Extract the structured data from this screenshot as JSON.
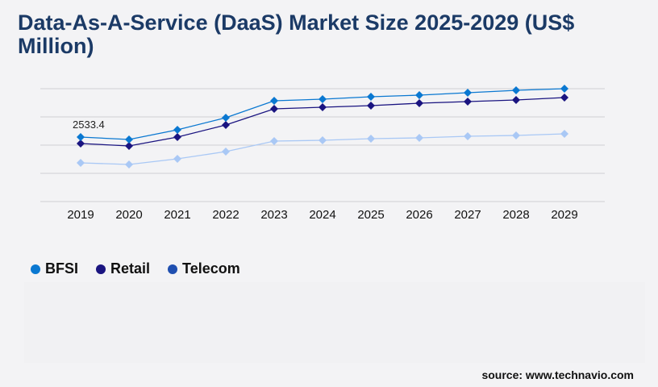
{
  "chart_data": {
    "type": "line",
    "title": "Data-As-A-Service (DaaS) Market Size 2025-2029 (US$ Million)",
    "x": [
      "2019",
      "2020",
      "2021",
      "2022",
      "2023",
      "2024",
      "2025",
      "2026",
      "2027",
      "2028",
      "2029"
    ],
    "series": [
      {
        "name": "BFSI",
        "color": "#0a78d1",
        "values": [
          2533.4,
          2439,
          2819,
          3294,
          3959,
          4022,
          4117,
          4180,
          4275,
          4370,
          4434
        ]
      },
      {
        "name": "Retail",
        "color": "#1a1480",
        "values": [
          2280,
          2185,
          2533,
          3009,
          3642,
          3705,
          3769,
          3864,
          3927,
          3990,
          4085
        ]
      },
      {
        "name": "Telecom",
        "color": "#a9c8f5",
        "legend_color": "#1f4fb0",
        "values": [
          1520,
          1457,
          1678,
          1963,
          2375,
          2407,
          2470,
          2502,
          2565,
          2597,
          2660
        ]
      }
    ],
    "annotations": [
      {
        "series": "BFSI",
        "x": "2019",
        "label": "2533.4"
      }
    ],
    "ylim": [
      0,
      4434
    ],
    "grid": true,
    "y_tick_labels_visible": false,
    "legend_placement": "bottom-left"
  },
  "source": "source: www.technavio.com"
}
